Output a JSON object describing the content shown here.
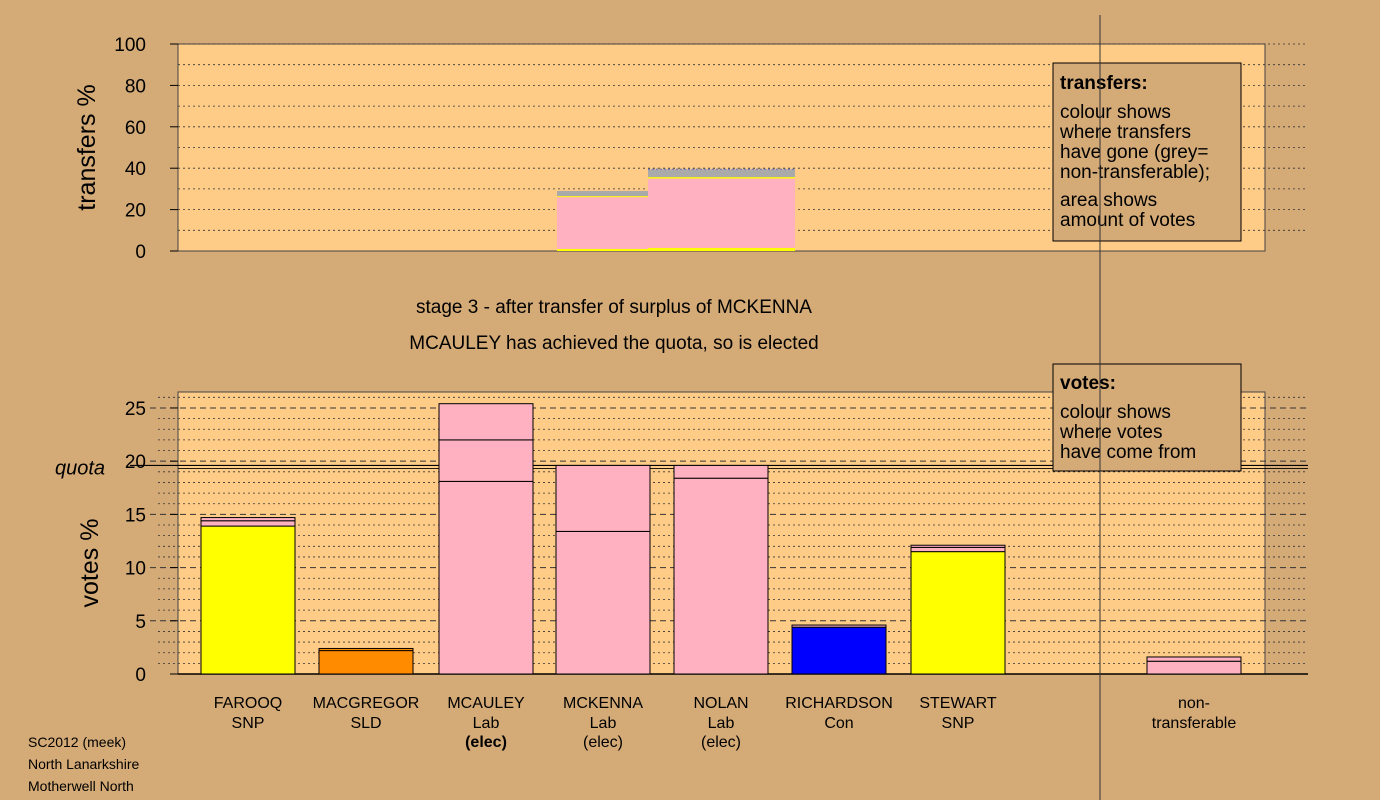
{
  "caption": {
    "line1": "stage 3 - after transfer of surplus of MCKENNA",
    "line2": "MCAULEY has achieved the quota, so is elected"
  },
  "footer": {
    "line1": "SC2012 (meek)",
    "line2": "North Lanarkshire",
    "line3": "Motherwell North"
  },
  "colors": {
    "background": "#D4AA77",
    "plot_bg": "#FFCC88",
    "Lab": "#FFB1C1",
    "SNP": "#FFFF00",
    "SLD": "#FF8C00",
    "Con": "#0000FF",
    "nontransferable": "#AAAAAA"
  },
  "chart_data": [
    {
      "id": "transfers",
      "type": "bar",
      "ylabel": "transfers %",
      "ylim": [
        0,
        100
      ],
      "yticks": [
        0,
        20,
        40,
        60,
        80,
        100
      ],
      "grid": true,
      "legend": {
        "title": "transfers:",
        "lines1": [
          "colour shows",
          "where transfers",
          "have gone (grey=",
          "non-transferable);"
        ],
        "lines2": [
          "area shows",
          "amount of votes"
        ]
      },
      "bars": [
        {
          "position": 4,
          "width": 0.75,
          "segments": [
            {
              "party": "SNP",
              "value": 1.0
            },
            {
              "party": "Lab",
              "value": 25.0
            },
            {
              "party": "SNP",
              "value": 0.5
            },
            {
              "party": "nontransferable",
              "value": 2.5
            }
          ]
        },
        {
          "position": 5,
          "width": 1.25,
          "segments": [
            {
              "party": "SNP",
              "value": 1.5
            },
            {
              "party": "Lab",
              "value": 33.5
            },
            {
              "party": "SNP",
              "value": 0.7
            },
            {
              "party": "nontransferable",
              "value": 3.8
            }
          ]
        }
      ]
    },
    {
      "id": "votes",
      "type": "bar",
      "ylabel": "votes %",
      "ylim": [
        0,
        26.5
      ],
      "yticks": [
        0,
        5,
        10,
        15,
        20,
        25
      ],
      "quota": 19.6,
      "quota_label": "quota",
      "grid": true,
      "legend": {
        "title": "votes:",
        "lines1": [
          "colour shows",
          "where votes",
          "have come from"
        ]
      },
      "candidates": [
        {
          "name": "FAROOQ",
          "party": "SNP",
          "status": "",
          "segments": [
            {
              "party": "SNP",
              "value": 13.9
            },
            {
              "party": "Lab",
              "value": 0.5
            },
            {
              "party": "Lab",
              "value": 0.3
            }
          ]
        },
        {
          "name": "MACGREGOR",
          "party": "SLD",
          "status": "",
          "segments": [
            {
              "party": "SLD",
              "value": 2.2
            },
            {
              "party": "SLD",
              "value": 0.2
            }
          ]
        },
        {
          "name": "MCAULEY",
          "party": "Lab",
          "status": "(elec)",
          "segments": [
            {
              "party": "Lab",
              "value": 18.1
            },
            {
              "party": "Lab",
              "value": 3.9
            },
            {
              "party": "Lab",
              "value": 3.4
            }
          ]
        },
        {
          "name": "MCKENNA",
          "party": "Lab",
          "status": "(elec)",
          "segments": [
            {
              "party": "Lab",
              "value": 13.4
            },
            {
              "party": "Lab",
              "value": 6.2
            }
          ]
        },
        {
          "name": "NOLAN",
          "party": "Lab",
          "status": "(elec)",
          "segments": [
            {
              "party": "Lab",
              "value": 18.4
            },
            {
              "party": "Lab",
              "value": 1.2
            }
          ]
        },
        {
          "name": "RICHARDSON",
          "party": "Con",
          "status": "",
          "segments": [
            {
              "party": "Con",
              "value": 4.4
            },
            {
              "party": "Lab",
              "value": 0.2
            }
          ]
        },
        {
          "name": "STEWART",
          "party": "SNP",
          "status": "",
          "segments": [
            {
              "party": "SNP",
              "value": 11.5
            },
            {
              "party": "Lab",
              "value": 0.4
            },
            {
              "party": "Lab",
              "value": 0.2
            }
          ]
        }
      ],
      "nontransferable": {
        "name": "non-",
        "name2": "transferable",
        "segments": [
          {
            "party": "Lab",
            "value": 1.2
          },
          {
            "party": "Lab",
            "value": 0.4
          }
        ]
      }
    }
  ]
}
